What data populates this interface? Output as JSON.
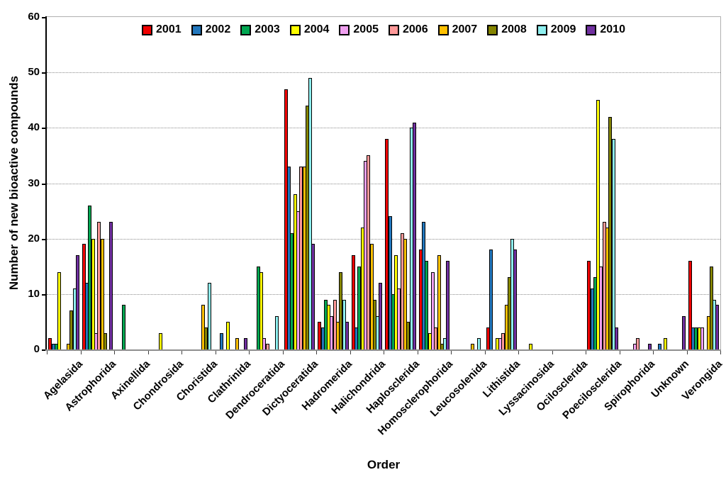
{
  "chart_data": {
    "type": "bar",
    "title": "",
    "xlabel": "Order",
    "ylabel": "Number of new bioactive compounds",
    "ylim": [
      0,
      60
    ],
    "yticks": [
      0,
      10,
      20,
      30,
      40,
      50,
      60
    ],
    "grid": "horizontal dotted gridlines every 10",
    "legend_position": "top-center, single row",
    "categories": [
      "Agelasida",
      "Astrophorida",
      "Axinellida",
      "Chondrosida",
      "Choristida",
      "Clathrinida",
      "Dendroceratida",
      "Dictyoceratida",
      "Hadromerida",
      "Halichondrida",
      "Haplosclerida",
      "Homosclerophorida",
      "Leucosolenida",
      "Lithistida",
      "Lyssacinosida",
      "Ocilosclerida",
      "Poecilosclerida",
      "Spirophorida",
      "Unknown",
      "Verongida"
    ],
    "series": [
      {
        "name": "2001",
        "color": "#F00000",
        "values": [
          2,
          19,
          0,
          0,
          0,
          0,
          0,
          47,
          5,
          17,
          38,
          18,
          0,
          4,
          0,
          0,
          16,
          0,
          0,
          16
        ]
      },
      {
        "name": "2002",
        "color": "#2277BD",
        "values": [
          1,
          12,
          0,
          0,
          0,
          3,
          0,
          33,
          4,
          4,
          24,
          23,
          0,
          18,
          0,
          0,
          11,
          0,
          1,
          4
        ]
      },
      {
        "name": "2003",
        "color": "#00A651",
        "values": [
          1,
          26,
          8,
          0,
          0,
          0,
          15,
          21,
          9,
          15,
          10,
          16,
          0,
          0,
          0,
          0,
          13,
          0,
          0,
          4
        ]
      },
      {
        "name": "2004",
        "color": "#FFFF00",
        "values": [
          14,
          20,
          0,
          3,
          0,
          5,
          14,
          28,
          8,
          22,
          17,
          3,
          0,
          2,
          1,
          0,
          45,
          0,
          2,
          4
        ]
      },
      {
        "name": "2005",
        "color": "#F0A0F0",
        "values": [
          0,
          3,
          0,
          0,
          0,
          0,
          2,
          25,
          6,
          34,
          11,
          14,
          0,
          2,
          0,
          0,
          15,
          1,
          0,
          4
        ]
      },
      {
        "name": "2006",
        "color": "#FF9999",
        "values": [
          0,
          23,
          0,
          0,
          0,
          0,
          1,
          33,
          9,
          35,
          21,
          4,
          0,
          3,
          0,
          0,
          23,
          2,
          0,
          0
        ]
      },
      {
        "name": "2007",
        "color": "#FFC000",
        "values": [
          1,
          20,
          0,
          0,
          8,
          2,
          0,
          33,
          5,
          19,
          20,
          17,
          1,
          8,
          0,
          0,
          22,
          0,
          0,
          6
        ]
      },
      {
        "name": "2008",
        "color": "#848400",
        "values": [
          7,
          3,
          0,
          0,
          4,
          0,
          0,
          44,
          14,
          9,
          5,
          1,
          0,
          13,
          0,
          0,
          42,
          0,
          0,
          15
        ]
      },
      {
        "name": "2009",
        "color": "#8EEFEF",
        "values": [
          11,
          0,
          0,
          0,
          12,
          0,
          6,
          49,
          9,
          6,
          40,
          2,
          2,
          20,
          0,
          0,
          38,
          0,
          0,
          9
        ]
      },
      {
        "name": "2010",
        "color": "#7030A0",
        "values": [
          17,
          23,
          0,
          0,
          0,
          2,
          0,
          19,
          5,
          12,
          41,
          16,
          0,
          18,
          0,
          0,
          4,
          1,
          6,
          8
        ]
      }
    ]
  }
}
